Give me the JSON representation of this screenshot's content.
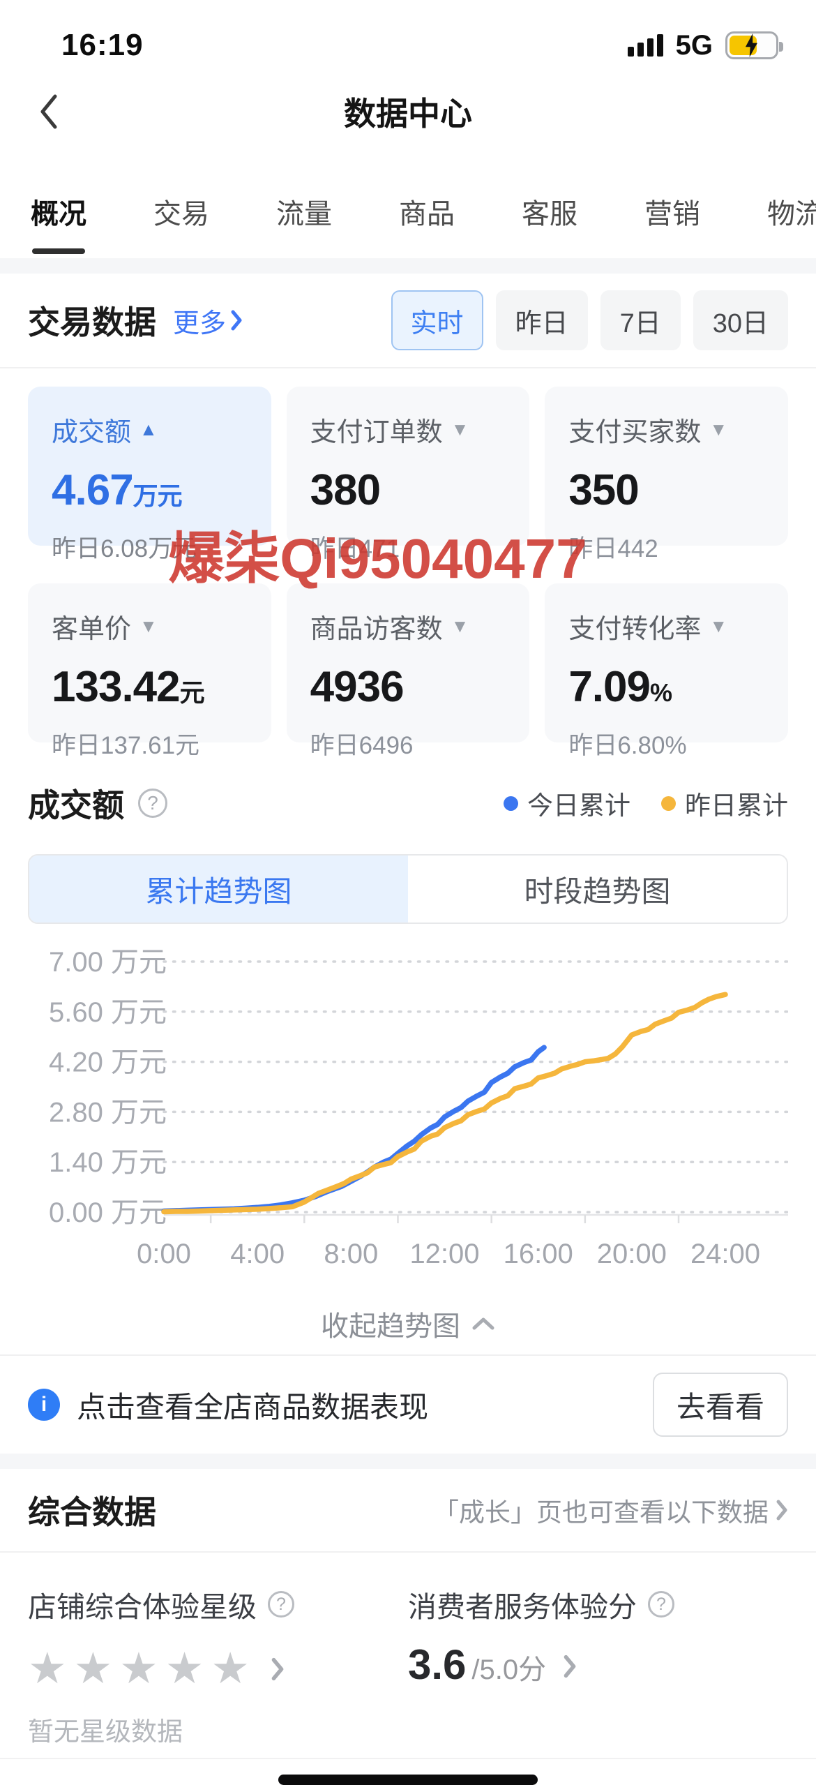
{
  "status_bar": {
    "time": "16:19",
    "network": "5G"
  },
  "header": {
    "title": "数据中心"
  },
  "tabs": {
    "items": [
      {
        "label": "概况",
        "active": true
      },
      {
        "label": "交易"
      },
      {
        "label": "流量"
      },
      {
        "label": "商品"
      },
      {
        "label": "客服"
      },
      {
        "label": "营销"
      },
      {
        "label": "物流"
      }
    ]
  },
  "trade": {
    "title": "交易数据",
    "more": "更多",
    "filters": [
      {
        "label": "实时",
        "active": true
      },
      {
        "label": "昨日"
      },
      {
        "label": "7日"
      },
      {
        "label": "30日"
      }
    ],
    "cards": [
      {
        "label": "成交额",
        "arrow": "▲",
        "value": "4.67",
        "unit": "万元",
        "sub": "昨日6.08万元",
        "selected": true
      },
      {
        "label": "支付订单数",
        "arrow": "▼",
        "value": "380",
        "unit": "",
        "sub": "昨日471"
      },
      {
        "label": "支付买家数",
        "arrow": "▼",
        "value": "350",
        "unit": "",
        "sub": "昨日442"
      },
      {
        "label": "客单价",
        "arrow": "▼",
        "value": "133.42",
        "unit": "元",
        "sub": "昨日137.61元"
      },
      {
        "label": "商品访客数",
        "arrow": "▼",
        "value": "4936",
        "unit": "",
        "sub": "昨日6496"
      },
      {
        "label": "支付转化率",
        "arrow": "▼",
        "value": "7.09",
        "unit": "%",
        "sub": "昨日6.80%"
      }
    ]
  },
  "watermark": "爆柒Qi95040477",
  "chart_section": {
    "title": "成交额",
    "help_glyph": "?",
    "legend": [
      {
        "label": "今日累计",
        "color": "#3b76f0"
      },
      {
        "label": "昨日累计",
        "color": "#f5b63c"
      }
    ],
    "tabs": [
      {
        "label": "累计趋势图",
        "active": true
      },
      {
        "label": "时段趋势图"
      }
    ],
    "collapse": "收起趋势图"
  },
  "chart_data": {
    "type": "line",
    "title": "成交额累计趋势图",
    "unit": "万元",
    "xlim": [
      0,
      24
    ],
    "ylim": [
      0,
      7
    ],
    "grid": "dotted-horizontal",
    "legend_position": "top-right",
    "x_ticks": [
      "0:00",
      "4:00",
      "8:00",
      "12:00",
      "16:00",
      "20:00",
      "24:00"
    ],
    "x_tick_hours": [
      0,
      4,
      8,
      12,
      16,
      20,
      24
    ],
    "y_ticks": [
      "7.00 万元",
      "5.60 万元",
      "4.20 万元",
      "2.80 万元",
      "1.40 万元",
      "0.00 万元"
    ],
    "y_tick_values": [
      7.0,
      5.6,
      4.2,
      2.8,
      1.4,
      0.0
    ],
    "series": [
      {
        "name": "今日累计",
        "color": "#3b76f0",
        "final_value": 4.67,
        "x": [
          0,
          0.5,
          1,
          1.5,
          2,
          2.5,
          3,
          3.5,
          4,
          4.5,
          5,
          5.5,
          6,
          6.5,
          7,
          7.3,
          7.6,
          8,
          8.4,
          8.7,
          9,
          9.4,
          9.7,
          10,
          10.4,
          10.7,
          11,
          11.4,
          11.7,
          12,
          12.4,
          12.7,
          13,
          13.4,
          13.7,
          14,
          14.4,
          14.7,
          15,
          15.4,
          15.7,
          16,
          16.25
        ],
        "y": [
          0.03,
          0.04,
          0.05,
          0.06,
          0.07,
          0.08,
          0.09,
          0.11,
          0.13,
          0.16,
          0.2,
          0.26,
          0.33,
          0.44,
          0.58,
          0.65,
          0.72,
          0.86,
          1.0,
          1.12,
          1.26,
          1.4,
          1.48,
          1.64,
          1.85,
          1.98,
          2.16,
          2.35,
          2.45,
          2.66,
          2.82,
          2.92,
          3.1,
          3.25,
          3.35,
          3.62,
          3.78,
          3.88,
          4.06,
          4.18,
          4.25,
          4.48,
          4.6
        ]
      },
      {
        "name": "昨日累计",
        "color": "#f5b63c",
        "final_value": 6.08,
        "x": [
          0,
          0.5,
          1,
          1.5,
          2,
          2.5,
          3,
          3.5,
          4,
          4.5,
          5,
          5.5,
          6,
          6.3,
          6.6,
          7,
          7.4,
          7.7,
          8,
          8.4,
          8.7,
          9,
          9.4,
          9.7,
          10,
          10.4,
          10.7,
          11,
          11.4,
          11.7,
          12,
          12.4,
          12.7,
          13,
          13.4,
          13.7,
          14,
          14.4,
          14.7,
          15,
          15.4,
          15.7,
          16,
          16.4,
          16.7,
          17,
          17.4,
          17.7,
          18,
          18.4,
          18.7,
          19,
          19.3,
          19.6,
          20,
          20.4,
          20.7,
          21,
          21.4,
          21.7,
          22,
          22.4,
          22.7,
          23,
          23.3,
          23.6,
          24
        ],
        "y": [
          0.01,
          0.02,
          0.02,
          0.03,
          0.04,
          0.05,
          0.06,
          0.07,
          0.08,
          0.1,
          0.12,
          0.15,
          0.28,
          0.4,
          0.52,
          0.62,
          0.72,
          0.8,
          0.92,
          1.02,
          1.1,
          1.26,
          1.33,
          1.38,
          1.55,
          1.68,
          1.76,
          1.98,
          2.12,
          2.18,
          2.36,
          2.48,
          2.55,
          2.72,
          2.82,
          2.88,
          3.05,
          3.18,
          3.25,
          3.45,
          3.52,
          3.58,
          3.75,
          3.82,
          3.88,
          4.0,
          4.08,
          4.13,
          4.2,
          4.23,
          4.26,
          4.3,
          4.42,
          4.62,
          4.95,
          5.05,
          5.1,
          5.25,
          5.35,
          5.42,
          5.58,
          5.65,
          5.72,
          5.85,
          5.95,
          6.02,
          6.08
        ]
      }
    ]
  },
  "promo": {
    "text": "点击查看全店商品数据表现",
    "button": "去看看"
  },
  "overview": {
    "title": "综合数据",
    "hint": "「成长」页也可查看以下数据",
    "store_star": {
      "label": "店铺综合体验星级",
      "stars_total": 5,
      "stars_filled": 0,
      "note": "暂无星级数据"
    },
    "service_score": {
      "label": "消费者服务体验分",
      "score": "3.6",
      "denom": "/5.0分"
    }
  }
}
